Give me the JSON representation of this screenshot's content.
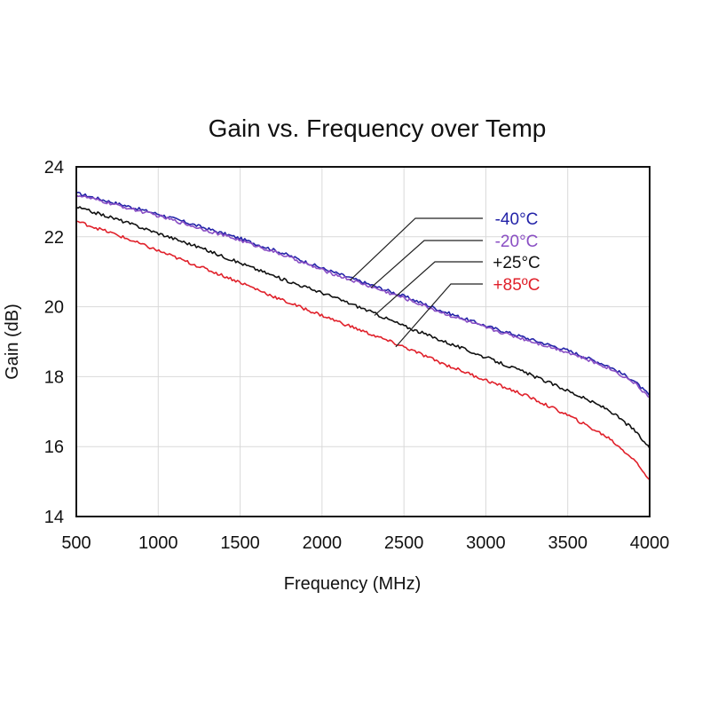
{
  "chart_data": {
    "type": "line",
    "title": "Gain vs. Frequency over Temp",
    "xlabel": "Frequency (MHz)",
    "ylabel": "Gain (dB)",
    "xlim": [
      500,
      4000
    ],
    "ylim": [
      14,
      24
    ],
    "x_ticks": [
      "500",
      "1000",
      "1500",
      "2000",
      "2500",
      "3000",
      "3500",
      "4000"
    ],
    "y_ticks": [
      "14",
      "16",
      "18",
      "20",
      "22",
      "24"
    ],
    "grid": true,
    "legend_placement": "inline-top-right",
    "series": [
      {
        "name": "-40°C",
        "color": "#2323a8",
        "x": [
          500,
          750,
          1000,
          1250,
          1500,
          1750,
          2000,
          2250,
          2500,
          2750,
          3000,
          3250,
          3500,
          3750,
          3900,
          4000
        ],
        "y": [
          23.25,
          22.95,
          22.65,
          22.3,
          21.95,
          21.55,
          21.1,
          20.7,
          20.3,
          19.85,
          19.45,
          19.1,
          18.75,
          18.3,
          17.9,
          17.45
        ]
      },
      {
        "name": "-20°C",
        "color": "#8a4fc4",
        "x": [
          500,
          750,
          1000,
          1250,
          1500,
          1750,
          2000,
          2250,
          2500,
          2750,
          3000,
          3250,
          3500,
          3750,
          3900,
          4000
        ],
        "y": [
          23.2,
          22.9,
          22.6,
          22.25,
          21.9,
          21.5,
          21.05,
          20.65,
          20.25,
          19.8,
          19.4,
          19.05,
          18.7,
          18.25,
          17.85,
          17.4
        ]
      },
      {
        "name": "+25°C",
        "color": "#111111",
        "x": [
          500,
          750,
          1000,
          1250,
          1500,
          1750,
          2000,
          2250,
          2500,
          2750,
          3000,
          3250,
          3500,
          3750,
          3900,
          4000
        ],
        "y": [
          22.85,
          22.5,
          22.1,
          21.7,
          21.25,
          20.8,
          20.4,
          19.95,
          19.45,
          19.0,
          18.55,
          18.1,
          17.6,
          17.05,
          16.5,
          15.95
        ]
      },
      {
        "name": "+85ºC",
        "color": "#e0202a",
        "x": [
          500,
          750,
          1000,
          1250,
          1500,
          1750,
          2000,
          2250,
          2500,
          2750,
          3000,
          3250,
          3500,
          3750,
          3900,
          4000
        ],
        "y": [
          22.45,
          22.05,
          21.6,
          21.15,
          20.7,
          20.2,
          19.75,
          19.3,
          18.85,
          18.35,
          17.9,
          17.45,
          16.9,
          16.25,
          15.65,
          15.05
        ]
      }
    ],
    "annotations": [
      {
        "series": "-40°C",
        "x": 2170,
        "y": 20.75
      },
      {
        "series": "-20°C",
        "x": 2300,
        "y": 20.55
      },
      {
        "series": "+25°C",
        "x": 2320,
        "y": 19.75
      },
      {
        "series": "+85ºC",
        "x": 2450,
        "y": 18.85
      }
    ]
  }
}
